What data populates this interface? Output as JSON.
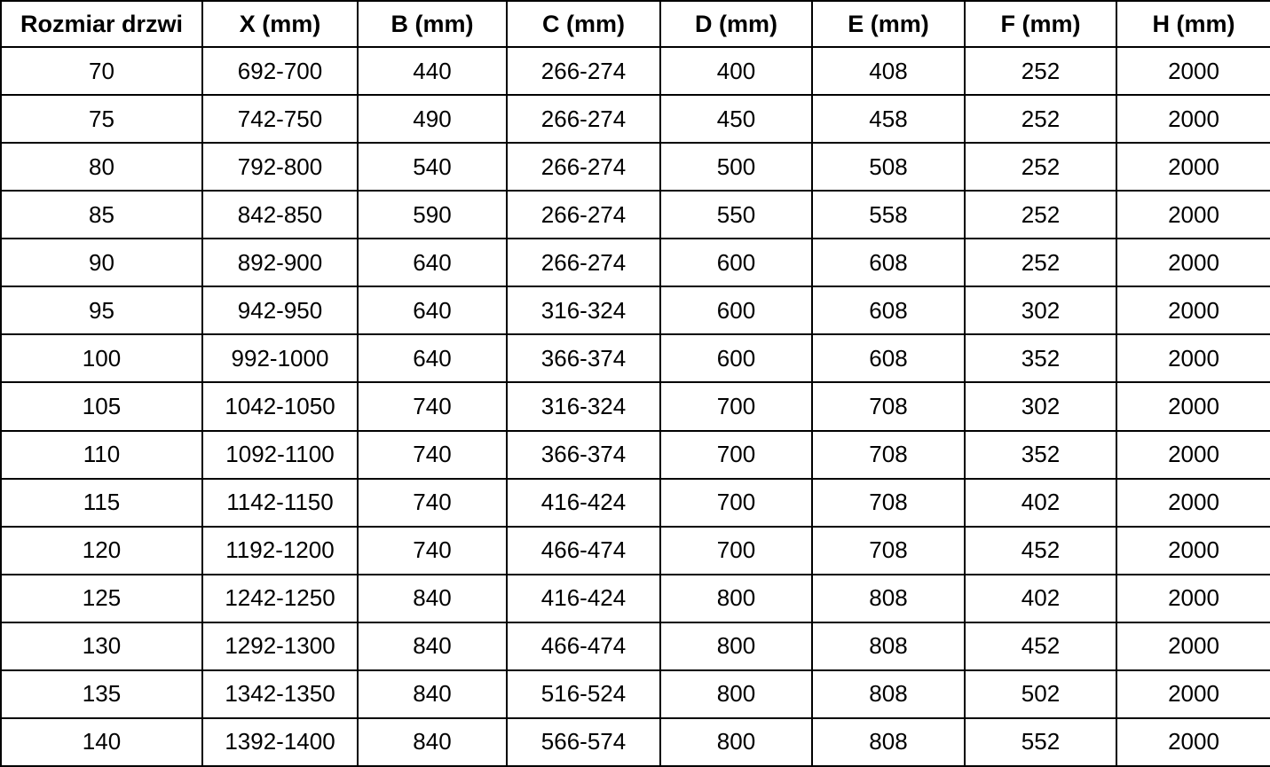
{
  "chart_data": {
    "type": "table",
    "columns": [
      "Rozmiar drzwi",
      "X (mm)",
      "B (mm)",
      "C (mm)",
      "D (mm)",
      "E (mm)",
      "F (mm)",
      "H (mm)"
    ],
    "rows": [
      [
        "70",
        "692-700",
        "440",
        "266-274",
        "400",
        "408",
        "252",
        "2000"
      ],
      [
        "75",
        "742-750",
        "490",
        "266-274",
        "450",
        "458",
        "252",
        "2000"
      ],
      [
        "80",
        "792-800",
        "540",
        "266-274",
        "500",
        "508",
        "252",
        "2000"
      ],
      [
        "85",
        "842-850",
        "590",
        "266-274",
        "550",
        "558",
        "252",
        "2000"
      ],
      [
        "90",
        "892-900",
        "640",
        "266-274",
        "600",
        "608",
        "252",
        "2000"
      ],
      [
        "95",
        "942-950",
        "640",
        "316-324",
        "600",
        "608",
        "302",
        "2000"
      ],
      [
        "100",
        "992-1000",
        "640",
        "366-374",
        "600",
        "608",
        "352",
        "2000"
      ],
      [
        "105",
        "1042-1050",
        "740",
        "316-324",
        "700",
        "708",
        "302",
        "2000"
      ],
      [
        "110",
        "1092-1100",
        "740",
        "366-374",
        "700",
        "708",
        "352",
        "2000"
      ],
      [
        "115",
        "1142-1150",
        "740",
        "416-424",
        "700",
        "708",
        "402",
        "2000"
      ],
      [
        "120",
        "1192-1200",
        "740",
        "466-474",
        "700",
        "708",
        "452",
        "2000"
      ],
      [
        "125",
        "1242-1250",
        "840",
        "416-424",
        "800",
        "808",
        "402",
        "2000"
      ],
      [
        "130",
        "1292-1300",
        "840",
        "466-474",
        "800",
        "808",
        "452",
        "2000"
      ],
      [
        "135",
        "1342-1350",
        "840",
        "516-524",
        "800",
        "808",
        "502",
        "2000"
      ],
      [
        "140",
        "1392-1400",
        "840",
        "566-574",
        "800",
        "808",
        "552",
        "2000"
      ]
    ]
  },
  "colors": {
    "border": "#000000",
    "text": "#000000",
    "background": "#ffffff"
  }
}
